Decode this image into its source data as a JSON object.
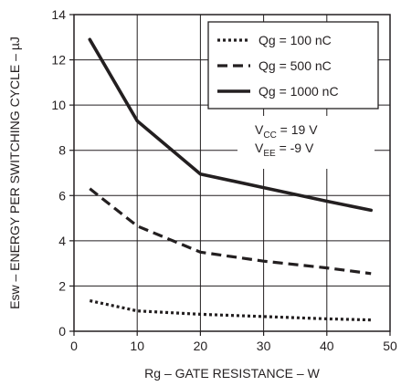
{
  "chart_data": {
    "type": "line",
    "xlabel": "Rg – GATE RESISTANCE  – W",
    "ylabel": "Esw – ENERGY PER SWITCHING CYCLE – µJ",
    "xlim": [
      0,
      50
    ],
    "ylim": [
      0,
      14
    ],
    "xticks": [
      "0",
      "10",
      "20",
      "30",
      "40",
      "50"
    ],
    "yticks": [
      "0",
      "2",
      "4",
      "6",
      "8",
      "10",
      "12",
      "14"
    ],
    "grid": true,
    "legend_position": "top-right",
    "series": [
      {
        "name": "Qg = 100 nC",
        "style": "dotted",
        "x": [
          2.5,
          10,
          20,
          30,
          40,
          47
        ],
        "y": [
          1.35,
          0.9,
          0.75,
          0.65,
          0.55,
          0.5
        ]
      },
      {
        "name": "Qg = 500 nC",
        "style": "dashed",
        "x": [
          2.5,
          10,
          20,
          30,
          40,
          47
        ],
        "y": [
          6.3,
          4.65,
          3.5,
          3.1,
          2.8,
          2.55
        ]
      },
      {
        "name": "Qg = 1000 nC",
        "style": "solid",
        "x": [
          2.5,
          10,
          20,
          30,
          40,
          47
        ],
        "y": [
          12.9,
          9.3,
          6.95,
          6.35,
          5.75,
          5.35
        ]
      }
    ],
    "annotations": [
      {
        "main": "V",
        "sub": "CC",
        "rest": " = 19 V"
      },
      {
        "main": "V",
        "sub": "EE",
        "rest": " = -9 V"
      }
    ],
    "line_color": "#231f20"
  }
}
